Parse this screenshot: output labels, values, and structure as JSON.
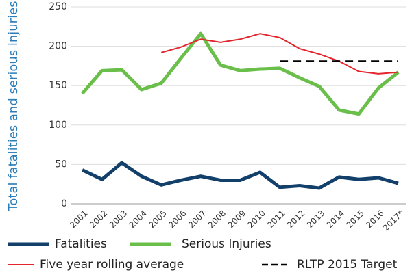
{
  "chart_data": {
    "type": "line",
    "y_label": "Total fatalities and serious injuries",
    "categories": [
      "2001",
      "2002",
      "2003",
      "2004",
      "2005",
      "2006",
      "2007",
      "2008",
      "2009",
      "2010",
      "2011",
      "2012",
      "2013",
      "2014",
      "2015",
      "2016",
      "2017*"
    ],
    "series": [
      {
        "name": "Fatalities",
        "color": "#12406b",
        "width": 5,
        "values": [
          43,
          31,
          52,
          35,
          24,
          30,
          35,
          30,
          30,
          40,
          21,
          23,
          20,
          34,
          31,
          33,
          26
        ]
      },
      {
        "name": "Serious Injuries",
        "color": "#6abf4b",
        "width": 5,
        "values": [
          140,
          169,
          170,
          145,
          153,
          185,
          216,
          176,
          169,
          171,
          172,
          160,
          149,
          119,
          114,
          147,
          167
        ]
      },
      {
        "name": "Five year rolling average",
        "color": "#e3262d",
        "width": 2,
        "values": [
          null,
          null,
          null,
          null,
          192,
          199,
          209,
          205,
          209,
          216,
          211,
          197,
          190,
          181,
          168,
          165,
          167
        ]
      },
      {
        "name": "RLTP 2015 Target",
        "color": "#000000",
        "width": 2.5,
        "dashed": true,
        "values": [
          null,
          null,
          null,
          null,
          null,
          null,
          null,
          null,
          null,
          null,
          181,
          181,
          181,
          181,
          181,
          181,
          181
        ]
      }
    ],
    "ylim": [
      0,
      250
    ],
    "yticks": [
      0,
      50,
      100,
      150,
      200,
      250
    ],
    "grid": true
  }
}
